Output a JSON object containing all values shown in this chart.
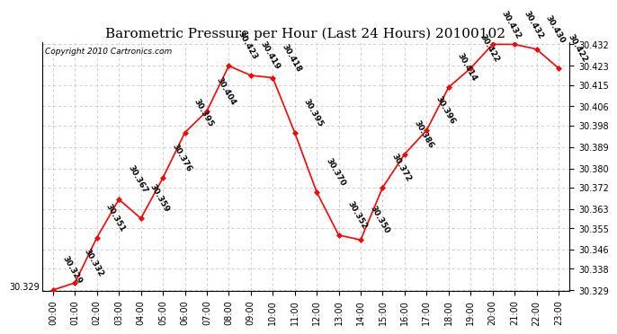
{
  "title": "Barometric Pressure per Hour (Last 24 Hours) 20100102",
  "copyright": "Copyright 2010 Cartronics.com",
  "hours": [
    "00:00",
    "01:00",
    "02:00",
    "03:00",
    "04:00",
    "05:00",
    "06:00",
    "07:00",
    "08:00",
    "09:00",
    "10:00",
    "11:00",
    "12:00",
    "13:00",
    "14:00",
    "15:00",
    "16:00",
    "17:00",
    "18:00",
    "19:00",
    "20:00",
    "21:00",
    "22:00",
    "23:00"
  ],
  "values": [
    30.329,
    30.332,
    30.351,
    30.367,
    30.359,
    30.376,
    30.395,
    30.404,
    30.423,
    30.419,
    30.418,
    30.395,
    30.37,
    30.352,
    30.35,
    30.372,
    30.386,
    30.396,
    30.414,
    30.422,
    30.432,
    30.432,
    30.43,
    30.422
  ],
  "ylim_min": 30.329,
  "ylim_max": 30.432,
  "yticks": [
    30.329,
    30.338,
    30.346,
    30.355,
    30.363,
    30.372,
    30.38,
    30.389,
    30.398,
    30.406,
    30.415,
    30.423,
    30.432
  ],
  "line_color": "#FF0000",
  "marker_color": "#FF0000",
  "bg_color": "#FFFFFF",
  "grid_color": "#C8C8C8",
  "title_fontsize": 11,
  "label_fontsize": 7,
  "annotation_fontsize": 6.5,
  "copyright_fontsize": 6.5,
  "annotation_rotation": -60
}
